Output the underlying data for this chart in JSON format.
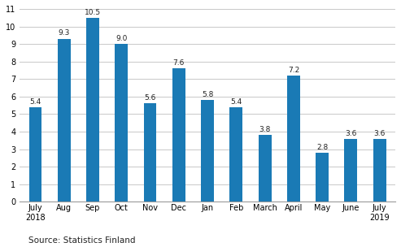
{
  "categories": [
    "July\n2018",
    "Aug",
    "Sep",
    "Oct",
    "Nov",
    "Dec",
    "Jan",
    "Feb",
    "March",
    "April",
    "May",
    "June",
    "July\n2019"
  ],
  "values": [
    5.4,
    9.3,
    10.5,
    9.0,
    5.6,
    7.6,
    5.8,
    5.4,
    3.8,
    7.2,
    2.8,
    3.6,
    3.6
  ],
  "bar_color": "#1a7ab5",
  "ylim": [
    0,
    11
  ],
  "yticks": [
    0,
    1,
    2,
    3,
    4,
    5,
    6,
    7,
    8,
    9,
    10,
    11
  ],
  "source_text": "Source: Statistics Finland",
  "label_fontsize": 6.5,
  "tick_fontsize": 7,
  "source_fontsize": 7.5,
  "bar_width": 0.45,
  "grid_color": "#c8c8c8",
  "background_color": "#ffffff"
}
